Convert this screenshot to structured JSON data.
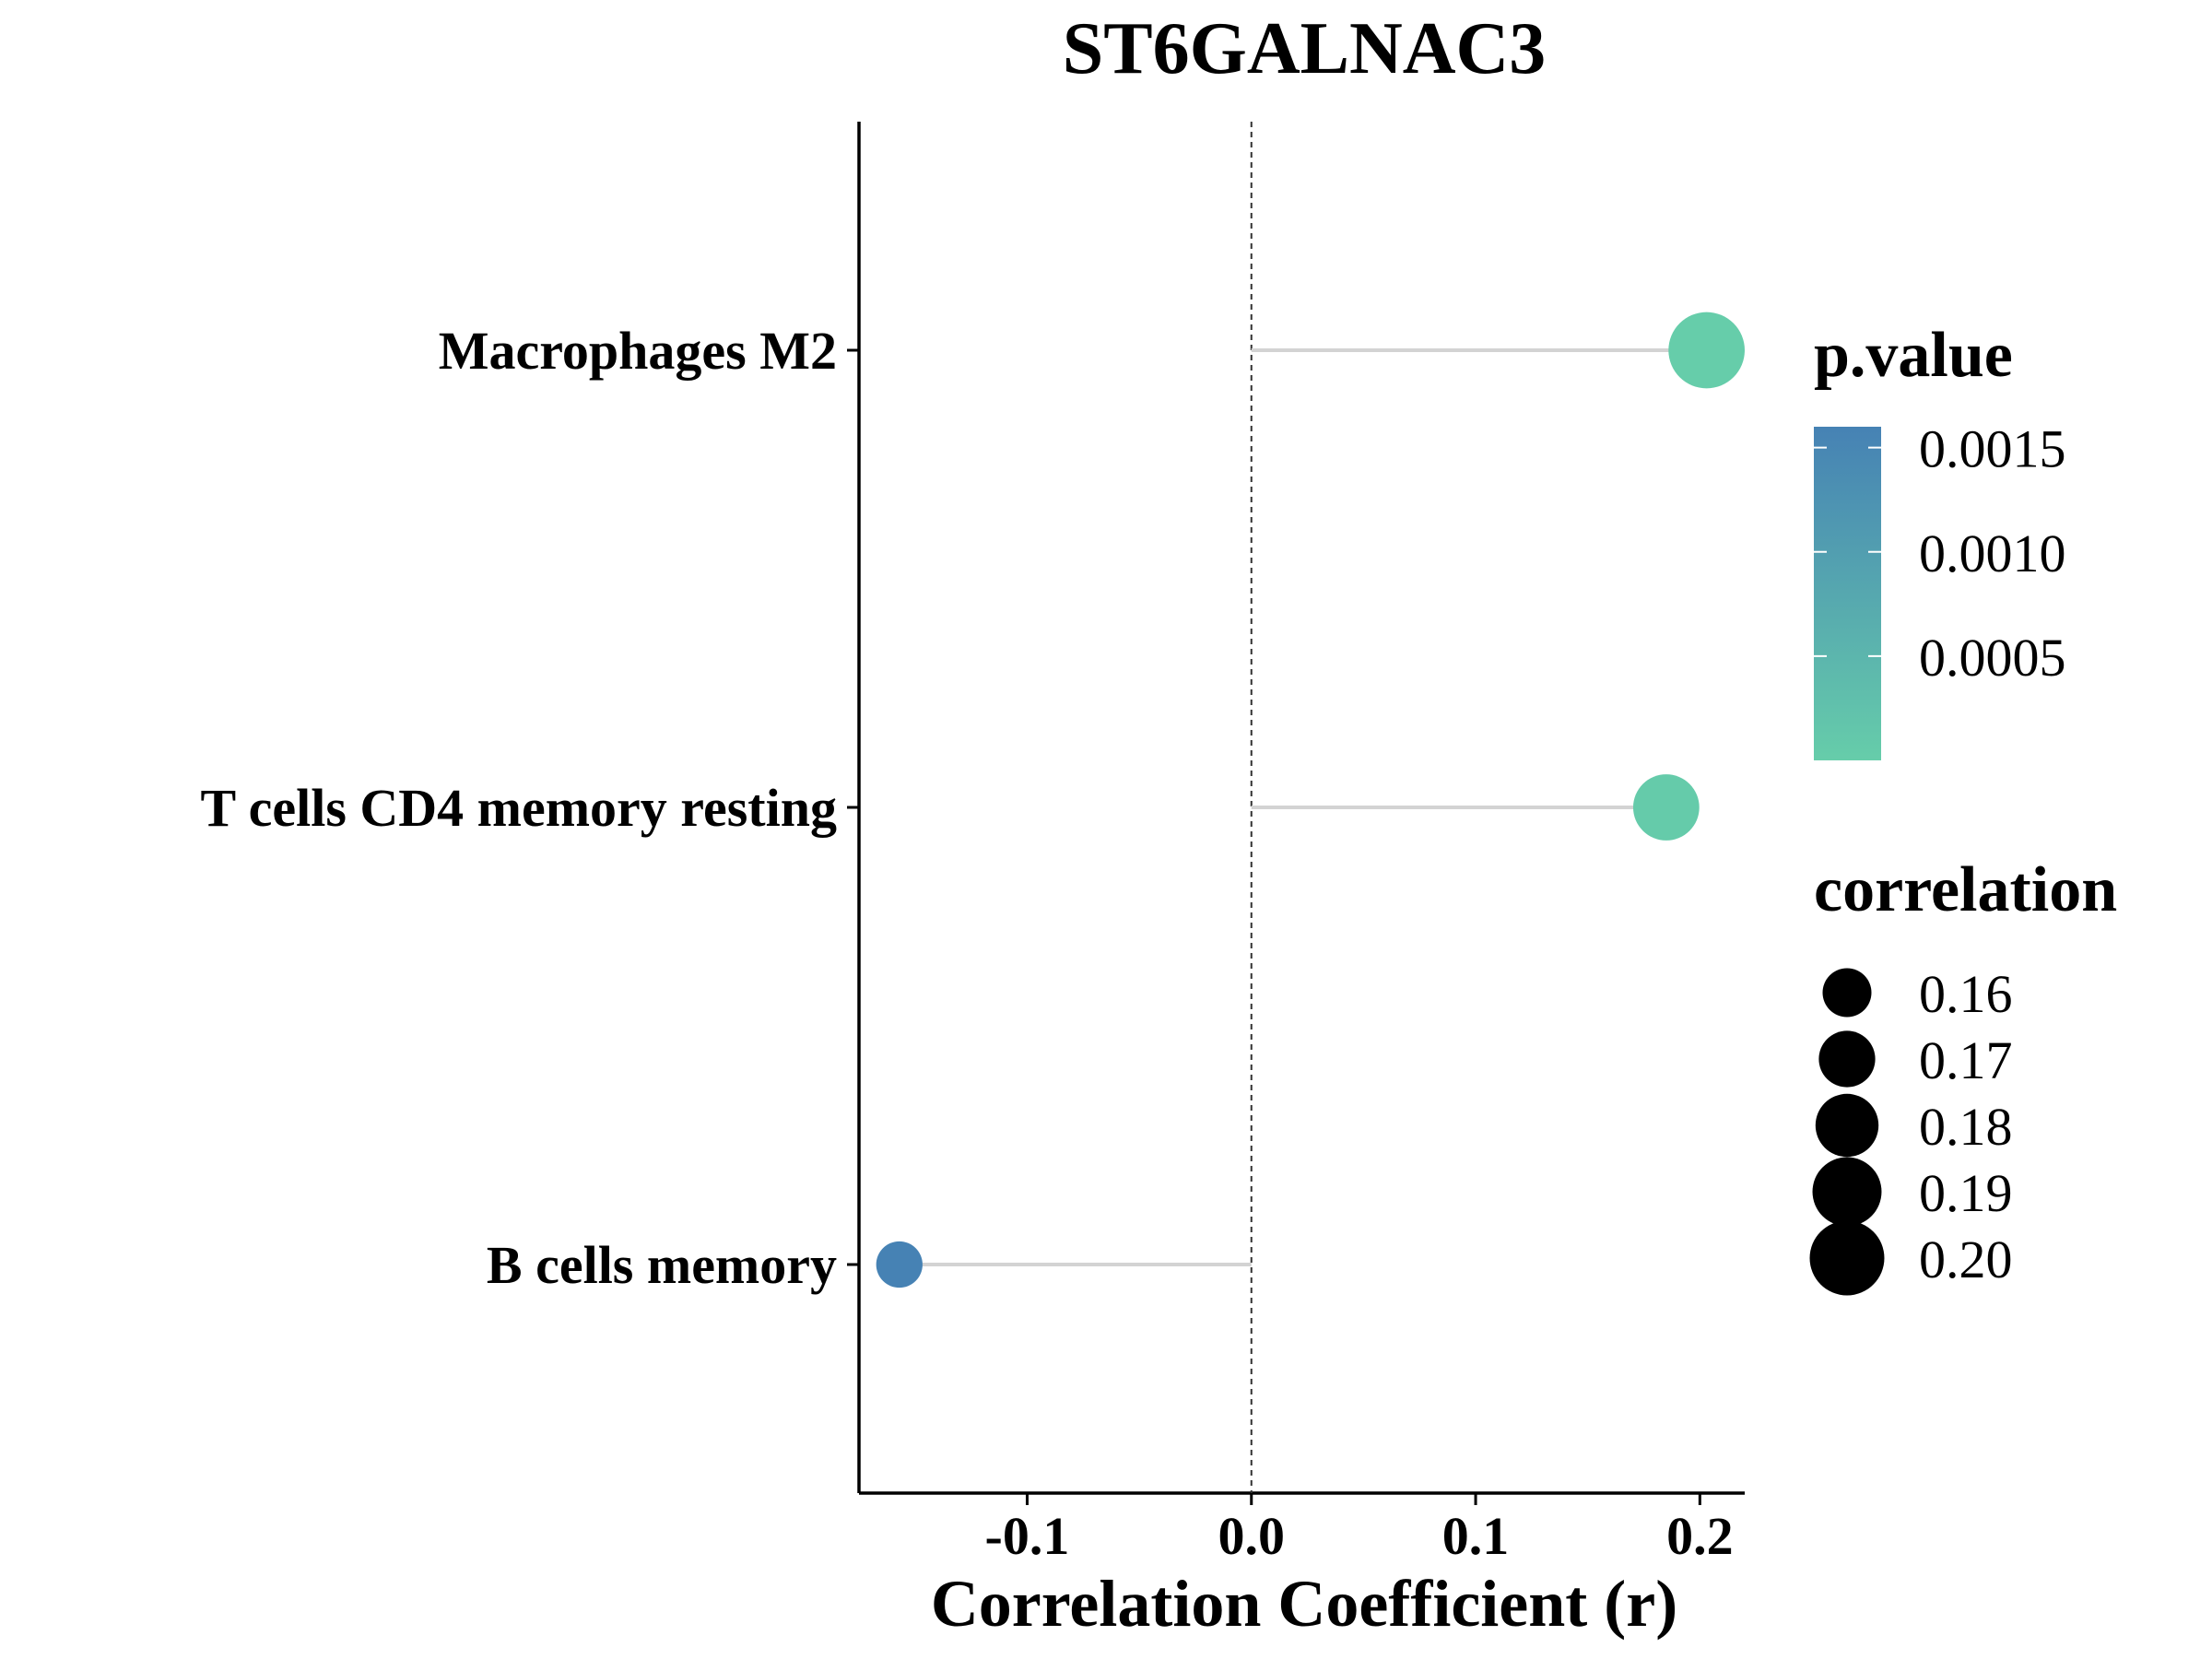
{
  "chart_data": {
    "type": "lollipop",
    "title": "ST6GALNAC3",
    "xlabel": "Correlation Coefficient (r)",
    "ylabel": "",
    "xlim": [
      -0.175,
      0.22
    ],
    "x_ticks": [
      -0.1,
      0.0,
      0.1,
      0.2
    ],
    "x_tick_labels": [
      "-0.1",
      "0.0",
      "0.1",
      "0.2"
    ],
    "reference_line": 0.0,
    "grid": false,
    "categories": [
      "Macrophages M2",
      "T cells CD4 memory resting",
      "B cells memory"
    ],
    "points": [
      {
        "label": "Macrophages M2",
        "r": 0.203,
        "p_value": 1e-05,
        "correlation": 0.203
      },
      {
        "label": "T cells CD4 memory resting",
        "r": 0.185,
        "p_value": 5e-05,
        "correlation": 0.185
      },
      {
        "label": "B cells memory",
        "r": -0.157,
        "p_value": 0.0016,
        "correlation": 0.157
      }
    ],
    "legend_color": {
      "title": "p.value",
      "ticks": [
        "0.0015",
        "0.0010",
        "0.0005"
      ],
      "tick_values": [
        0.0015,
        0.001,
        0.0005
      ],
      "range": [
        0.0,
        0.0016
      ],
      "color_low": "#66cdaa",
      "color_high": "#4682b4"
    },
    "legend_size": {
      "title": "correlation",
      "entries": [
        "0.16",
        "0.17",
        "0.18",
        "0.19",
        "0.20"
      ],
      "values": [
        0.16,
        0.17,
        0.18,
        0.19,
        0.2
      ]
    },
    "colors": {
      "stem": "#d3d3d3",
      "axis": "#000000",
      "reference": "#333333"
    }
  }
}
